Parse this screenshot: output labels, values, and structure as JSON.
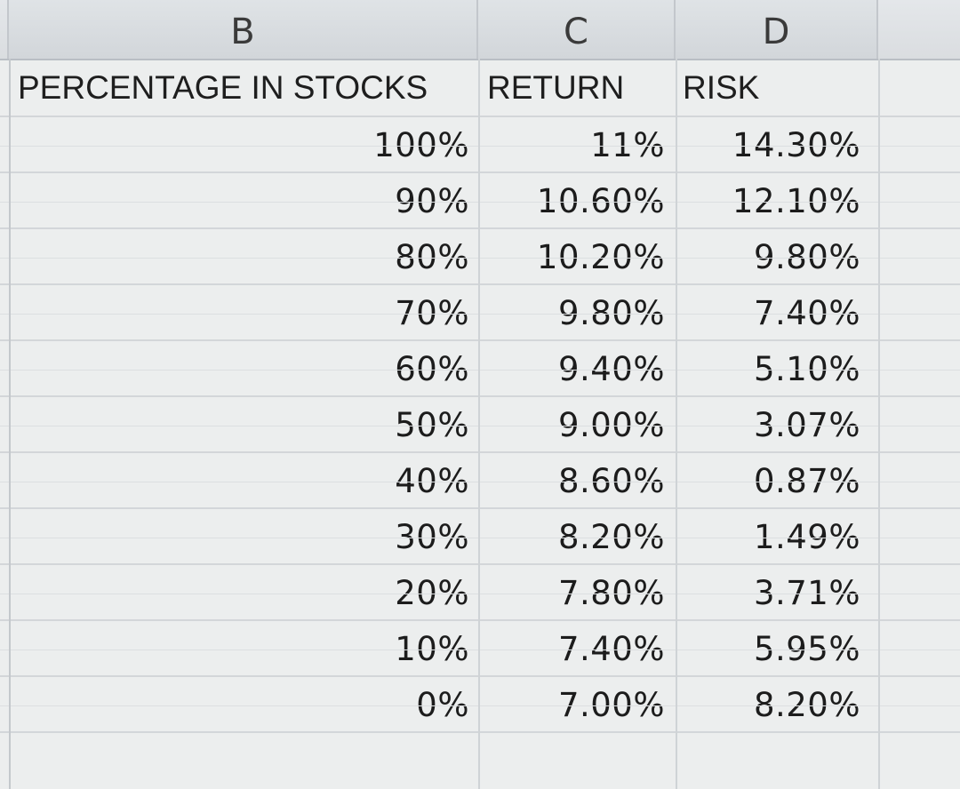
{
  "columns": [
    "B",
    "C",
    "D"
  ],
  "headers": {
    "b": "PERCENTAGE IN STOCKS",
    "c": "RETURN",
    "d": "RISK"
  },
  "rows": [
    {
      "stocks": "100%",
      "return": "11%",
      "risk": "14.30%"
    },
    {
      "stocks": "90%",
      "return": "10.60%",
      "risk": "12.10%"
    },
    {
      "stocks": "80%",
      "return": "10.20%",
      "risk": "9.80%"
    },
    {
      "stocks": "70%",
      "return": "9.80%",
      "risk": "7.40%"
    },
    {
      "stocks": "60%",
      "return": "9.40%",
      "risk": "5.10%"
    },
    {
      "stocks": "50%",
      "return": "9.00%",
      "risk": "3.07%"
    },
    {
      "stocks": "40%",
      "return": "8.60%",
      "risk": "0.87%"
    },
    {
      "stocks": "30%",
      "return": "8.20%",
      "risk": "1.49%"
    },
    {
      "stocks": "20%",
      "return": "7.80%",
      "risk": "3.71%"
    },
    {
      "stocks": "10%",
      "return": "7.40%",
      "risk": "5.95%"
    },
    {
      "stocks": "0%",
      "return": "7.00%",
      "risk": "8.20%"
    }
  ],
  "colors": {
    "header_bg": "#dfe2e5",
    "grid_line": "#d3d6d9",
    "cell_bg": "#eceeee",
    "text": "#1c1c1c"
  }
}
